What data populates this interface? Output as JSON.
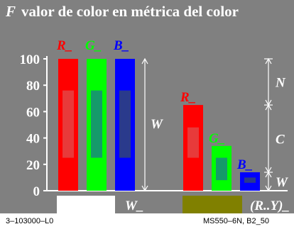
{
  "title": {
    "letter": "F",
    "text": "valor de color en métrica del color"
  },
  "footer": {
    "left": "3–103000–L0",
    "right": "MS550–6N, B2_50"
  },
  "colors": {
    "panel": "#808080",
    "red": "#ff0000",
    "red_inner": "#e83a3a",
    "green": "#00ff00",
    "green_inner": "#159a6a",
    "blue": "#0000ff",
    "blue_inner": "#2a3a8c",
    "white_sample": "#ffffff",
    "olive_sample": "#808000"
  },
  "chart_data": {
    "type": "bar",
    "y_ticks": [
      "0",
      "20",
      "40",
      "60",
      "80",
      "100"
    ],
    "ylim": [
      0,
      100
    ],
    "groups": [
      {
        "name": "white",
        "bars": [
          {
            "label": "R_",
            "color": "red",
            "value": 100,
            "inner_from": 25,
            "inner_to": 76
          },
          {
            "label": "G_",
            "color": "green",
            "value": 100,
            "inner_from": 25,
            "inner_to": 76
          },
          {
            "label": "B_",
            "color": "blue",
            "value": 100,
            "inner_from": 25,
            "inner_to": 76
          }
        ],
        "bracket_label": "W",
        "sample_label": "W_"
      },
      {
        "name": "olive",
        "bars": [
          {
            "label": "R_",
            "color": "red",
            "value": 65,
            "inner_from": 25,
            "inner_to": 48
          },
          {
            "label": "G_",
            "color": "green",
            "value": 34,
            "inner_from": 8,
            "inner_to": 25
          },
          {
            "label": "B_",
            "color": "blue",
            "value": 14,
            "inner_from": 6,
            "inner_to": 10
          }
        ],
        "sample_label": "(R..Y)_"
      }
    ],
    "right_brackets": [
      {
        "label": "N",
        "from": 65,
        "to": 100
      },
      {
        "label": "C",
        "from": 14,
        "to": 65
      },
      {
        "label": "W",
        "from": 0,
        "to": 14
      }
    ]
  }
}
